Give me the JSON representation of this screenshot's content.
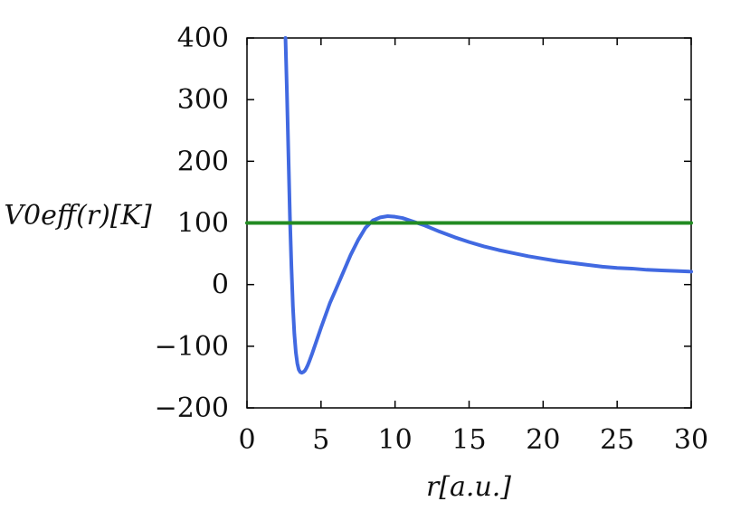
{
  "chart_data": {
    "type": "line",
    "xlabel": "r[a.u.]",
    "ylabel": "V0eff(r)[K]",
    "xlim": [
      0,
      30
    ],
    "ylim": [
      -200,
      400
    ],
    "x_ticks": [
      0,
      5,
      10,
      15,
      20,
      25,
      30
    ],
    "y_ticks": [
      -200,
      -100,
      0,
      100,
      200,
      300,
      400
    ],
    "x_tick_labels": [
      "0",
      "5",
      "10",
      "15",
      "20",
      "25",
      "30"
    ],
    "y_tick_labels": [
      "−200",
      "−100",
      "0",
      "100",
      "200",
      "300",
      "400"
    ],
    "grid": false,
    "series": [
      {
        "color": "#4169e1",
        "x": [
          2.6,
          2.7,
          2.8,
          2.9,
          3.0,
          3.1,
          3.2,
          3.3,
          3.4,
          3.5,
          3.6,
          3.7,
          3.8,
          3.9,
          4.0,
          4.1,
          4.2,
          4.4,
          4.6,
          4.8,
          5.0,
          5.3,
          5.6,
          6.0,
          6.5,
          7.0,
          7.5,
          8.0,
          8.5,
          9.0,
          9.5,
          10.0,
          10.5,
          11.0,
          12.0,
          13.0,
          14.0,
          15.0,
          16.0,
          17.0,
          18.0,
          19.0,
          20.0,
          21.0,
          22.0,
          23.0,
          24.0,
          25.0,
          26.0,
          27.0,
          28.0,
          29.0,
          30.0
        ],
        "y": [
          400,
          310,
          210,
          110,
          30,
          -35,
          -80,
          -110,
          -128,
          -138,
          -142,
          -143,
          -142,
          -140,
          -136,
          -131,
          -125,
          -112,
          -98,
          -84,
          -70,
          -50,
          -30,
          -8,
          20,
          48,
          72,
          92,
          104,
          109,
          111,
          110,
          108,
          104,
          96,
          86,
          77,
          69,
          62,
          56,
          51,
          46,
          42,
          38,
          35,
          32,
          29,
          27,
          26,
          24,
          23,
          22,
          21
        ]
      },
      {
        "color": "#228b22",
        "x": [
          0,
          30
        ],
        "y": [
          100,
          100
        ]
      }
    ]
  }
}
